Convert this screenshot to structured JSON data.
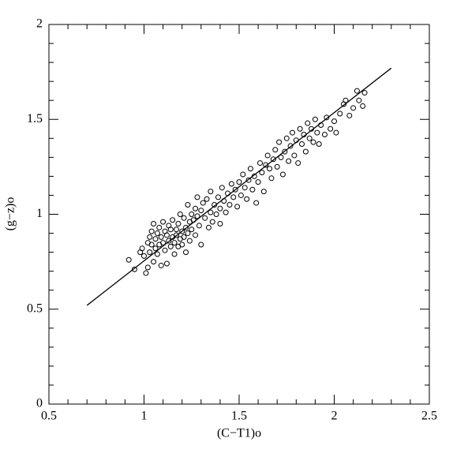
{
  "chart_data": {
    "type": "scatter",
    "xlabel": "(C−T1)o",
    "ylabel": "(g−z)o",
    "xlim": [
      0.5,
      2.5
    ],
    "ylim": [
      0,
      2
    ],
    "xticks": [
      0.5,
      1,
      1.5,
      2,
      2.5
    ],
    "yticks": [
      0,
      0.5,
      1,
      1.5,
      2
    ],
    "xminorticks": [
      0.6,
      0.7,
      0.8,
      0.9,
      1.1,
      1.2,
      1.3,
      1.4,
      1.6,
      1.7,
      1.8,
      1.9,
      2.1,
      2.2,
      2.3,
      2.4
    ],
    "yminorticks": [
      0.1,
      0.2,
      0.3,
      0.4,
      0.6,
      0.7,
      0.8,
      0.9,
      1.1,
      1.2,
      1.3,
      1.4,
      1.6,
      1.7,
      1.8,
      1.9
    ],
    "color": "#000000",
    "x": [
      0.92,
      0.95,
      0.98,
      0.99,
      1.0,
      1.01,
      1.02,
      1.02,
      1.03,
      1.03,
      1.04,
      1.04,
      1.05,
      1.05,
      1.06,
      1.06,
      1.07,
      1.07,
      1.08,
      1.08,
      1.09,
      1.09,
      1.1,
      1.1,
      1.11,
      1.11,
      1.12,
      1.12,
      1.13,
      1.13,
      1.14,
      1.14,
      1.15,
      1.15,
      1.16,
      1.16,
      1.17,
      1.17,
      1.18,
      1.18,
      1.19,
      1.19,
      1.2,
      1.2,
      1.21,
      1.21,
      1.22,
      1.22,
      1.23,
      1.23,
      1.24,
      1.24,
      1.25,
      1.25,
      1.26,
      1.27,
      1.27,
      1.28,
      1.28,
      1.29,
      1.3,
      1.3,
      1.31,
      1.32,
      1.33,
      1.34,
      1.35,
      1.35,
      1.36,
      1.37,
      1.38,
      1.39,
      1.4,
      1.4,
      1.41,
      1.42,
      1.43,
      1.44,
      1.45,
      1.46,
      1.47,
      1.48,
      1.49,
      1.5,
      1.51,
      1.52,
      1.53,
      1.54,
      1.55,
      1.56,
      1.57,
      1.58,
      1.59,
      1.6,
      1.61,
      1.62,
      1.63,
      1.64,
      1.65,
      1.66,
      1.67,
      1.68,
      1.69,
      1.7,
      1.71,
      1.72,
      1.73,
      1.74,
      1.75,
      1.76,
      1.77,
      1.78,
      1.79,
      1.8,
      1.81,
      1.82,
      1.83,
      1.84,
      1.85,
      1.86,
      1.87,
      1.88,
      1.89,
      1.9,
      1.91,
      1.92,
      1.93,
      1.95,
      1.96,
      1.98,
      2.0,
      2.01,
      2.03,
      2.05,
      2.06,
      2.08,
      2.1,
      2.12,
      2.13,
      2.15,
      2.16
    ],
    "values": [
      0.76,
      0.71,
      0.8,
      0.82,
      0.78,
      0.69,
      0.85,
      0.72,
      0.88,
      0.8,
      0.91,
      0.84,
      0.95,
      0.75,
      0.87,
      0.82,
      0.9,
      0.79,
      0.93,
      0.84,
      0.73,
      0.88,
      0.96,
      0.85,
      0.91,
      0.81,
      0.89,
      0.74,
      0.94,
      0.86,
      0.83,
      0.92,
      0.88,
      0.97,
      0.85,
      0.79,
      0.92,
      0.89,
      0.95,
      0.83,
      0.87,
      1.0,
      0.91,
      0.84,
      0.98,
      0.88,
      0.93,
      0.8,
      1.05,
      0.9,
      0.96,
      0.86,
      1.0,
      0.92,
      0.97,
      1.03,
      0.89,
      0.99,
      1.09,
      0.94,
      1.02,
      0.84,
      1.06,
      0.98,
      1.08,
      0.93,
      1.12,
      1.01,
      0.96,
      1.05,
      1.0,
      1.09,
      1.03,
      0.95,
      1.14,
      1.07,
      1.01,
      1.11,
      1.05,
      1.16,
      1.09,
      1.13,
      1.04,
      1.17,
      1.1,
      1.21,
      1.14,
      1.08,
      1.18,
      1.24,
      1.13,
      1.2,
      1.06,
      1.17,
      1.27,
      1.22,
      1.12,
      1.26,
      1.31,
      1.24,
      1.19,
      1.29,
      1.34,
      1.25,
      1.38,
      1.3,
      1.21,
      1.33,
      1.4,
      1.28,
      1.36,
      1.43,
      1.31,
      1.39,
      1.27,
      1.45,
      1.37,
      1.42,
      1.33,
      1.48,
      1.4,
      1.45,
      1.38,
      1.5,
      1.43,
      1.37,
      1.47,
      1.42,
      1.51,
      1.45,
      1.49,
      1.43,
      1.53,
      1.58,
      1.6,
      1.52,
      1.56,
      1.65,
      1.6,
      1.57,
      1.64
    ],
    "fit": {
      "x": [
        0.7,
        2.3
      ],
      "values": [
        0.52,
        1.77
      ]
    }
  }
}
